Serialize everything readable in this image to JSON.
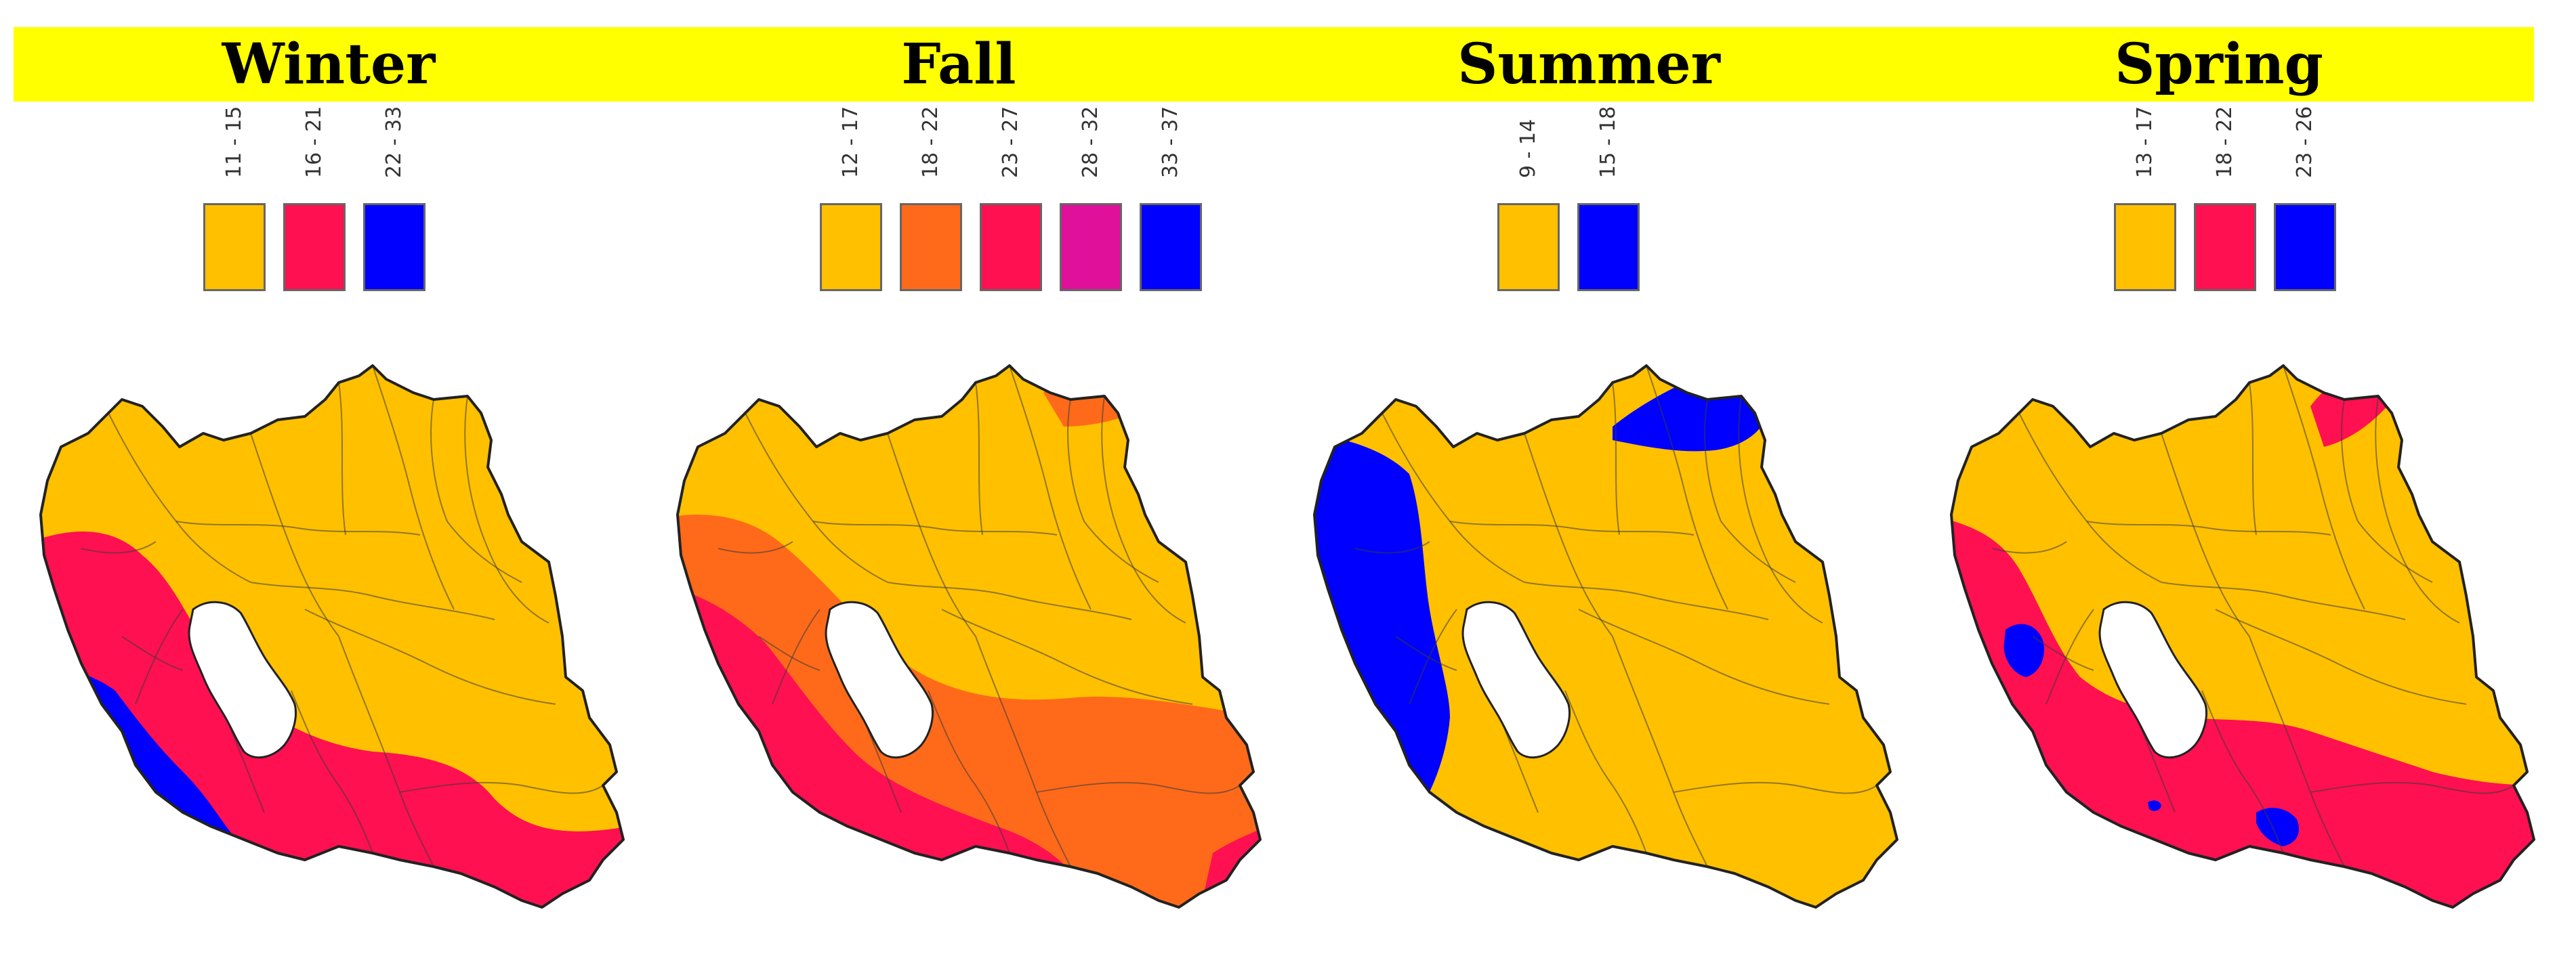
{
  "panels": [
    {
      "title": "Winter",
      "legend": [
        {
          "label": "11 - 15",
          "color": "#ffc000"
        },
        {
          "label": "16 - 21",
          "color": "#ff1050"
        },
        {
          "label": "22 - 33",
          "color": "#0000ff"
        }
      ]
    },
    {
      "title": "Fall",
      "legend": [
        {
          "label": "12 - 17",
          "color": "#ffc000"
        },
        {
          "label": "18 - 22",
          "color": "#ff6a1a"
        },
        {
          "label": "23 - 27",
          "color": "#ff1050"
        },
        {
          "label": "28 - 32",
          "color": "#e0109a"
        },
        {
          "label": "33 - 37",
          "color": "#0000ff"
        }
      ]
    },
    {
      "title": "Summer",
      "legend": [
        {
          "label": "9 - 14",
          "color": "#ffc000"
        },
        {
          "label": "15 - 18",
          "color": "#0000ff"
        }
      ]
    },
    {
      "title": "Spring",
      "legend": [
        {
          "label": "13 - 17",
          "color": "#ffc000"
        },
        {
          "label": "18 - 22",
          "color": "#ff1050"
        },
        {
          "label": "23 - 26",
          "color": "#0000ff"
        }
      ]
    }
  ]
}
